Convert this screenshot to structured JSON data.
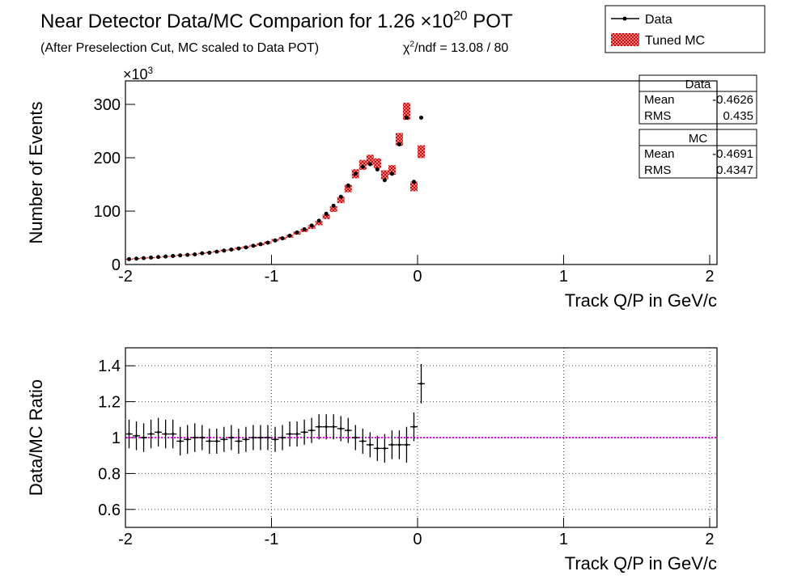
{
  "chart_data": [
    {
      "type": "histcompare",
      "title": {
        "text": "Near Detector Data/MC Comparion for 1.26 ×10",
        "sup": "20",
        "tail": " POT"
      },
      "subtitle": "(After Preselection Cut, MC scaled to Data POT)",
      "chi2_label": {
        "symbol": "χ",
        "sup": "2",
        "text": "/ndf = 13.08 / 80"
      },
      "x_label": "Track Q/P in GeV/c",
      "y_label": "Number of Events",
      "y_multiplier": {
        "text": "×10",
        "sup": "3"
      },
      "xlim": [
        -2,
        2.05
      ],
      "xticks": [
        -2,
        -1,
        0,
        1,
        2
      ],
      "ylim": [
        0,
        344
      ],
      "yticks": [
        0,
        100,
        200,
        300
      ],
      "grid": false,
      "x": [
        -1.975,
        -1.925,
        -1.875,
        -1.825,
        -1.775,
        -1.725,
        -1.675,
        -1.625,
        -1.575,
        -1.525,
        -1.475,
        -1.425,
        -1.375,
        -1.325,
        -1.275,
        -1.225,
        -1.175,
        -1.125,
        -1.075,
        -1.025,
        -0.975,
        -0.925,
        -0.875,
        -0.825,
        -0.775,
        -0.725,
        -0.675,
        -0.625,
        -0.575,
        -0.525,
        -0.475,
        -0.425,
        -0.375,
        -0.325,
        -0.275,
        -0.225,
        -0.175,
        -0.125,
        -0.075,
        -0.025,
        0.025
      ],
      "series": [
        {
          "name": "Data",
          "color": "#000000",
          "values": [
            10,
            11,
            12,
            13,
            14,
            15,
            16,
            17,
            18,
            19,
            21,
            22,
            24,
            26,
            28,
            30,
            32,
            35,
            38,
            41,
            45,
            49,
            54,
            60,
            66,
            73,
            82,
            95,
            110,
            127,
            148,
            170,
            183,
            188,
            178,
            158,
            170,
            225,
            275,
            155,
            275
          ]
        },
        {
          "name": "Tuned MC",
          "color": "#e00000",
          "values": [
            9.8,
            10.9,
            12,
            12.7,
            13.6,
            14.7,
            15.7,
            17.3,
            18.2,
            19,
            21,
            22.4,
            24.5,
            26.3,
            28,
            30.6,
            32.3,
            35,
            38,
            41,
            45.5,
            49,
            52.9,
            58.8,
            64,
            70.2,
            77.4,
            89.6,
            103.8,
            121,
            142.3,
            170,
            186.7,
            195.8,
            189.4,
            168.1,
            177.1,
            234.4,
            287,
            146.2,
            211.5
          ],
          "errors": [
            1,
            1,
            1,
            1,
            1,
            1,
            1,
            1,
            1,
            1,
            1.2,
            1.2,
            1.3,
            1.4,
            1.5,
            1.6,
            1.7,
            1.8,
            2,
            2.1,
            2.3,
            2.5,
            2.7,
            3,
            3.2,
            3.6,
            3.9,
            4.5,
            5.2,
            6,
            7,
            8.5,
            9.3,
            9.8,
            9.5,
            8.4,
            9,
            12,
            16,
            9,
            12
          ]
        }
      ],
      "legend": "top-right",
      "stats": [
        {
          "title": "Data",
          "color": "#000000",
          "rows": [
            [
              "Mean",
              -0.4626
            ],
            [
              "RMS",
              0.435
            ]
          ]
        },
        {
          "title": "MC",
          "color": "#e00000",
          "rows": [
            [
              "Mean",
              -0.4691
            ],
            [
              "RMS",
              0.4347
            ]
          ]
        }
      ]
    },
    {
      "type": "ratio",
      "x_label": "Track Q/P in GeV/c",
      "y_label": "Data/MC Ratio",
      "xlim": [
        -2,
        2.05
      ],
      "xticks": [
        -2,
        -1,
        0,
        1,
        2
      ],
      "ylim": [
        0.5,
        1.5
      ],
      "yticks": [
        0.6,
        0.8,
        1,
        1.2,
        1.4
      ],
      "grid": true,
      "reference_line": 1,
      "reference_color": "#ff00ff",
      "x": [
        -1.975,
        -1.925,
        -1.875,
        -1.825,
        -1.775,
        -1.725,
        -1.675,
        -1.625,
        -1.575,
        -1.525,
        -1.475,
        -1.425,
        -1.375,
        -1.325,
        -1.275,
        -1.225,
        -1.175,
        -1.125,
        -1.075,
        -1.025,
        -0.975,
        -0.925,
        -0.875,
        -0.825,
        -0.775,
        -0.725,
        -0.675,
        -0.625,
        -0.575,
        -0.525,
        -0.475,
        -0.425,
        -0.375,
        -0.325,
        -0.275,
        -0.225,
        -0.175,
        -0.125,
        -0.075,
        -0.025,
        0.025
      ],
      "series": [
        {
          "color": "#000000",
          "values": [
            1.02,
            1.01,
            1,
            1.02,
            1.03,
            1.02,
            1.02,
            0.98,
            0.99,
            1,
            1,
            0.98,
            0.98,
            0.99,
            1,
            0.98,
            0.99,
            1,
            1,
            1,
            0.99,
            1,
            1.02,
            1.02,
            1.03,
            1.04,
            1.06,
            1.06,
            1.06,
            1.05,
            1.04,
            1,
            0.98,
            0.96,
            0.94,
            0.94,
            0.96,
            0.96,
            0.96,
            1.06,
            1.3
          ],
          "errors": [
            0.08,
            0.08,
            0.08,
            0.08,
            0.08,
            0.08,
            0.08,
            0.08,
            0.08,
            0.08,
            0.07,
            0.07,
            0.07,
            0.07,
            0.07,
            0.07,
            0.07,
            0.07,
            0.07,
            0.07,
            0.07,
            0.07,
            0.07,
            0.07,
            0.07,
            0.07,
            0.07,
            0.07,
            0.07,
            0.07,
            0.07,
            0.07,
            0.07,
            0.07,
            0.07,
            0.08,
            0.08,
            0.08,
            0.1,
            0.08,
            0.11
          ]
        }
      ]
    }
  ]
}
